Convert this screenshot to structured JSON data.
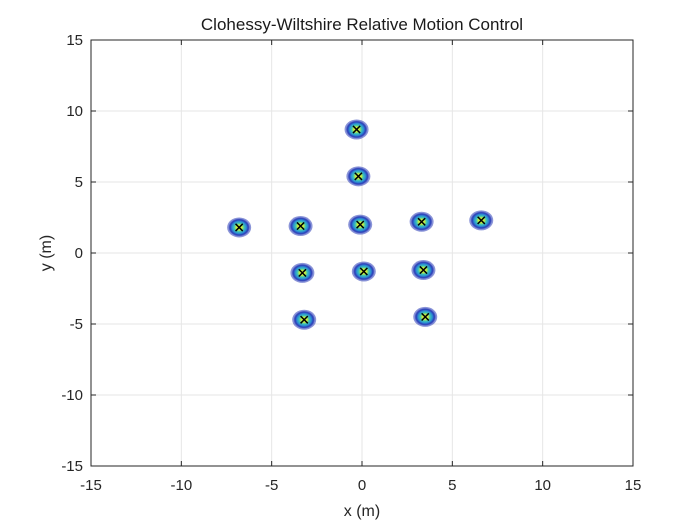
{
  "chart_data": {
    "type": "scatter",
    "title": "Clohessy-Wiltshire Relative Motion Control",
    "xlabel": "x (m)",
    "ylabel": "y (m)",
    "xlim": [
      -15,
      15
    ],
    "ylim": [
      -15,
      15
    ],
    "xticks": [
      -15,
      -10,
      -5,
      0,
      5,
      10,
      15
    ],
    "yticks": [
      -15,
      -10,
      -5,
      0,
      5,
      10,
      15
    ],
    "xtick_labels": [
      "-15",
      "-10",
      "-5",
      "0",
      "5",
      "10",
      "15"
    ],
    "ytick_labels": [
      "-15",
      "-10",
      "-5",
      "0",
      "5",
      "10",
      "15"
    ],
    "grid": true,
    "colors": {
      "outer": "#2a3db8",
      "mid": "#2c8fd4",
      "inner": "#3cc4b4",
      "core": "#e8f23a",
      "marker": "#000000",
      "grid": "#e6e6e6",
      "axis": "#262626"
    },
    "points": [
      {
        "x": -0.3,
        "y": 8.7
      },
      {
        "x": -0.2,
        "y": 5.4
      },
      {
        "x": -6.8,
        "y": 1.8
      },
      {
        "x": -3.4,
        "y": 1.9
      },
      {
        "x": -0.1,
        "y": 2.0
      },
      {
        "x": 3.3,
        "y": 2.2
      },
      {
        "x": 6.6,
        "y": 2.3
      },
      {
        "x": -3.3,
        "y": -1.4
      },
      {
        "x": 0.1,
        "y": -1.3
      },
      {
        "x": 3.4,
        "y": -1.2
      },
      {
        "x": -3.2,
        "y": -4.7
      },
      {
        "x": 3.5,
        "y": -4.5
      }
    ]
  }
}
